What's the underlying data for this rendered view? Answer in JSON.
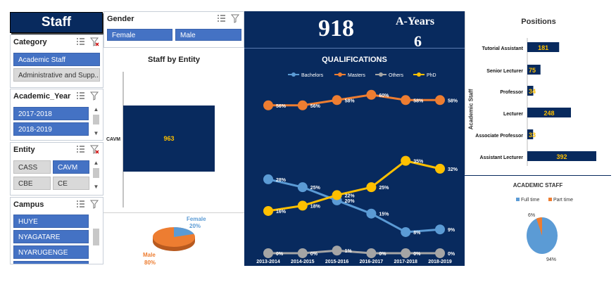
{
  "header": {
    "title": "Staff"
  },
  "slicers": {
    "category": {
      "title": "Category",
      "items": [
        "Academic Staff",
        "Administrative and Supp..."
      ]
    },
    "academic_year": {
      "title": "Academic_Year",
      "items": [
        "2017-2018",
        "2018-2019"
      ]
    },
    "entity": {
      "title": "Entity",
      "items": [
        "CASS",
        "CAVM",
        "CBE",
        "CE"
      ]
    },
    "campus": {
      "title": "Campus",
      "items": [
        "HUYE",
        "NYAGATARE",
        "NYARUGENGE"
      ]
    },
    "gender": {
      "title": "Gender",
      "items": [
        "Female",
        "Male"
      ]
    }
  },
  "kpi": {
    "total": "918",
    "years_label": "A-Years",
    "years_value": "6"
  },
  "staff_by_entity": {
    "title": "Staff by Entity",
    "chart_data": {
      "type": "bar",
      "categories": [
        "CAVM"
      ],
      "values": [
        963
      ]
    }
  },
  "gender_pie": {
    "chart_data": {
      "type": "pie",
      "slices": [
        {
          "label": "Female",
          "value": 20,
          "display": "20%"
        },
        {
          "label": "Male",
          "value": 80,
          "display": "80%"
        }
      ]
    }
  },
  "qualifications": {
    "title": "QUALIFICATIONS",
    "chart_data": {
      "type": "line",
      "x": [
        "2013-2014",
        "2014-2015",
        "2015-2016",
        "2016-2017",
        "2017-2018",
        "2018-2019"
      ],
      "ylim": [
        0,
        65
      ],
      "series": [
        {
          "name": "Bachelors",
          "color": "#5b9bd5",
          "values": [
            28,
            25,
            20,
            15,
            8,
            9
          ],
          "labels": [
            "28%",
            "25%",
            "20%",
            "15%",
            "8%",
            "9%"
          ]
        },
        {
          "name": "Masters",
          "color": "#ed7d31",
          "values": [
            56,
            56,
            58,
            60,
            58,
            58
          ],
          "labels": [
            "56%",
            "56%",
            "58%",
            "60%",
            "58%",
            "58%"
          ]
        },
        {
          "name": "Others",
          "color": "#a5a5a5",
          "values": [
            0,
            0,
            1,
            0,
            0,
            0
          ],
          "labels": [
            "0%",
            "0%",
            "1%",
            "0%",
            "0%",
            "0%"
          ]
        },
        {
          "name": "PhD",
          "color": "#ffc000",
          "values": [
            16,
            18,
            22,
            25,
            35,
            32
          ],
          "labels": [
            "16%",
            "18%",
            "22%",
            "25%",
            "35%",
            "32%"
          ]
        }
      ]
    }
  },
  "positions": {
    "title": "Positions",
    "axis_label": "Academic Staff",
    "chart_data": {
      "type": "bar",
      "categories": [
        "Tutorial Assistant",
        "Senior Lecturer",
        "Professor",
        "Lecturer",
        "Associate Professor",
        "Assistant Lecturer"
      ],
      "values": [
        181,
        75,
        34,
        248,
        33,
        392
      ]
    }
  },
  "academic_staff_pie": {
    "title": "ACADEMIC STAFF",
    "chart_data": {
      "type": "pie",
      "slices": [
        {
          "label": "Full time",
          "value": 94,
          "display": "94%",
          "color": "#5b9bd5"
        },
        {
          "label": "Part time",
          "value": 6,
          "display": "6%",
          "color": "#ed7d31"
        }
      ]
    }
  },
  "colors": {
    "navy": "#082a5e",
    "slicer_selected": "#4472c4",
    "slicer_unselected": "#d9d9d9"
  }
}
